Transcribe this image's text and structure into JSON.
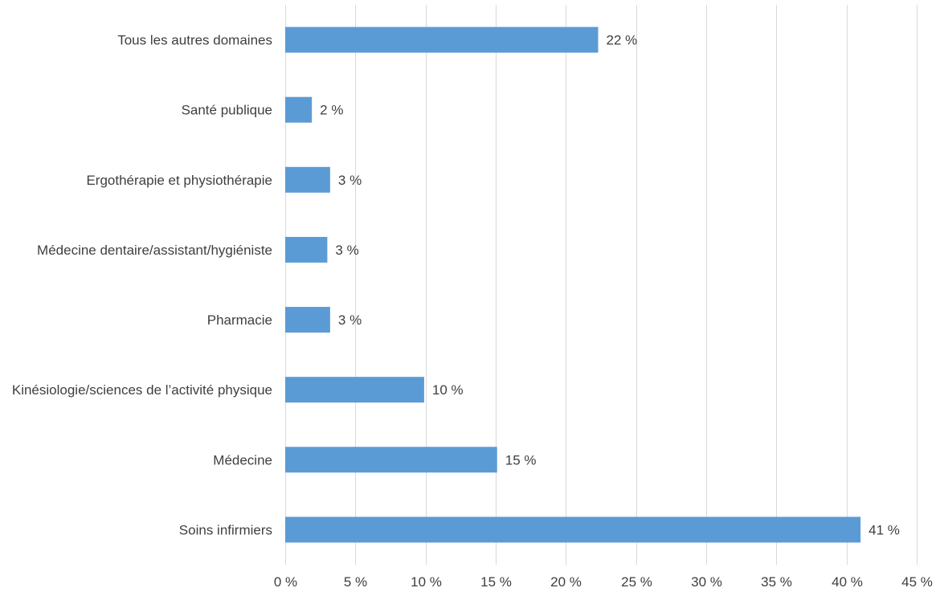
{
  "chart_data": {
    "type": "bar",
    "orientation": "horizontal",
    "categories": [
      "Tous les autres domaines",
      "Santé publique",
      "Ergothérapie et physiothérapie",
      "Médecine dentaire/assistant/hygiéniste",
      "Pharmacie",
      "Kinésiologie/sciences de l’activité physique",
      "Médecine",
      "Soins infirmiers"
    ],
    "values": [
      22.3,
      1.9,
      3.2,
      3.0,
      3.2,
      9.9,
      15.1,
      41.0
    ],
    "data_labels": [
      "22 %",
      "2 %",
      "3 %",
      "3 %",
      "3 %",
      "10 %",
      "15 %",
      "41 %"
    ],
    "xlim": [
      0,
      45
    ],
    "x_ticks": [
      0,
      5,
      10,
      15,
      20,
      25,
      30,
      35,
      40,
      45
    ],
    "x_tick_labels": [
      "0 %",
      "5 %",
      "10 %",
      "15 %",
      "20 %",
      "25 %",
      "30 %",
      "35 %",
      "40 %",
      "45 %"
    ],
    "grid": "vertical",
    "legend": "none",
    "title": "",
    "xlabel": "",
    "ylabel": "",
    "colors": {
      "bar": "#5b9bd5",
      "grid": "#d9d9d9",
      "text": "#3f3f3f"
    }
  }
}
